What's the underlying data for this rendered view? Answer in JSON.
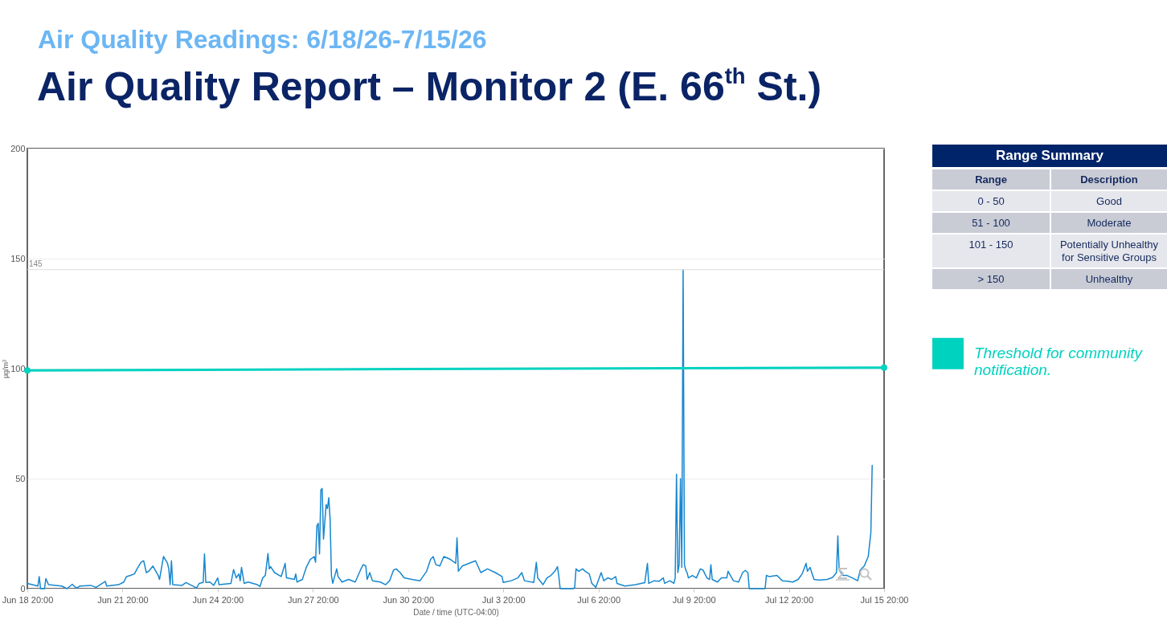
{
  "chart_data": [
    {
      "type": "line",
      "subtitle": "Air Quality Readings: 6/18/26-7/15/26",
      "title": "Air Quality Report – Monitor 2 (E. 66$^{th}$ St.)",
      "xlabel": "Date / time (UTC-04:00)",
      "ylabel": "µg/m³",
      "x": [
        "--06-18T20:00",
        "--06-19T04:00",
        "--06-19T05:00",
        "--06-19T06:00",
        "--06-19T09:00",
        "--06-19T10:00",
        "--06-19T12:00",
        "--06-19T22:00",
        "--06-20T02:00",
        "--06-20T06:00",
        "--06-20T09:00",
        "--06-20T12:00",
        "--06-20T20:00",
        "--06-21T00:00",
        "--06-21T07:00",
        "--06-21T08:00",
        "--06-21T17:00",
        "--06-21T21:00",
        "--06-21T23:00",
        "--06-22T02:00",
        "--06-22T05:00",
        "--06-22T07:00",
        "--06-22T10:00",
        "--06-22T12:00",
        "--06-22T14:00",
        "--06-22T16:00",
        "--06-22T19:00",
        "--06-22T23:00",
        "--06-23T00:00",
        "--06-23T03:00",
        "--06-23T06:00",
        "--06-23T07:00",
        "--06-23T08:00",
        "--06-23T09:00",
        "--06-23T10:00",
        "--06-23T17:00",
        "--06-23T20:00",
        "--06-24T04:00",
        "--06-24T06:00",
        "--06-24T09:00",
        "--06-24T10:00",
        "--06-24T11:00",
        "--06-24T14:00",
        "--06-24T17:00",
        "--06-24T20:00",
        "--06-24T21:00",
        "--06-25T06:00",
        "--06-25T08:00",
        "--06-25T10:00",
        "--06-25T12:00",
        "--06-25T13:00",
        "--06-25T14:00",
        "--06-25T16:00",
        "--06-25T19:00",
        "--06-26T02:00",
        "--06-26T04:00",
        "--06-26T06:00",
        "--06-26T08:00",
        "--06-26T10:00",
        "--06-26T11:00",
        "--06-26T12:00",
        "--06-26T15:00",
        "--06-26T20:00",
        "--06-26T23:00",
        "--06-27T00:00",
        "--06-27T06:00",
        "--06-27T07:00",
        "--06-27T08:00",
        "--06-27T12:00",
        "--06-27T15:00",
        "--06-27T18:00",
        "--06-27T21:00",
        "--06-27T22:00",
        "--06-27T23:00",
        "--06-28T00:00",
        "--06-28T01:00",
        "--06-28T02:00",
        "--06-28T03:00",
        "--06-28T04:00",
        "--06-28T06:00",
        "--06-28T07:00",
        "--06-28T08:00",
        "--06-28T09:00",
        "--06-28T10:00",
        "--06-28T11:00",
        "--06-28T14:00",
        "--06-28T15:00",
        "--06-28T18:00",
        "--06-28T23:00",
        "--06-29T04:00",
        "--06-29T08:00",
        "--06-29T10:00",
        "--06-29T12:00",
        "--06-29T13:00",
        "--06-29T15:00",
        "--06-29T17:00",
        "--06-29T23:00",
        "--06-30T03:00",
        "--06-30T06:00",
        "--06-30T09:00",
        "--06-30T11:00",
        "--06-30T14:00",
        "--06-30T17:00",
        "--06-30T23:00",
        "--07-01T05:00",
        "--07-01T10:00",
        "--07-01T13:00",
        "--07-01T15:00",
        "--07-01T17:00",
        "--07-01T20:00",
        "--07-01T23:00",
        "--07-02T04:00",
        "--07-02T08:00",
        "--07-02T09:00",
        "--07-02T10:00",
        "--07-02T13:00",
        "--07-02T18:00",
        "--07-02T23:00",
        "--07-03T03:00",
        "--07-03T08:00",
        "--07-03T14:00",
        "--07-03T19:00",
        "--07-03T20:00",
        "--07-04T02:00",
        "--07-04T07:00",
        "--07-04T10:00",
        "--07-04T12:00",
        "--07-04T19:00",
        "--07-04T21:00",
        "--07-04T22:00",
        "--07-05T02:00",
        "--07-05T05:00",
        "--07-05T08:00",
        "--07-05T11:00",
        "--07-05T13:00",
        "--07-05T14:00",
        "--07-05T15:00",
        "--07-06T01:00",
        "--07-06T02:00",
        "--07-06T03:00",
        "--07-06T05:00",
        "--07-06T08:00",
        "--07-06T10:00",
        "--07-06T13:00",
        "--07-06T15:00",
        "--07-06T18:00",
        "--07-06T22:00",
        "--07-07T00:00",
        "--07-07T03:00",
        "--07-07T06:00",
        "--07-07T09:00",
        "--07-07T10:00",
        "--07-07T16:00",
        "--07-08T00:00",
        "--07-08T07:00",
        "--07-08T09:00",
        "--07-08T10:00",
        "--07-08T14:00",
        "--07-08T18:00",
        "--07-08T21:00",
        "--07-08T22:00",
        "--07-09T02:00",
        "--07-09T05:00",
        "--07-09T06:00",
        "--07-09T07:00",
        "--07-09T08:00",
        "--07-09T09:00",
        "--07-09T10:00",
        "--07-09T11:00",
        "--07-09T12:00",
        "--07-09T13:00",
        "--07-09T14:00",
        "--07-09T15:00",
        "--07-09T16:00",
        "--07-09T19:00",
        "--07-09T22:00",
        "--07-10T01:00",
        "--07-10T03:00",
        "--07-10T06:00",
        "--07-10T08:00",
        "--07-10T09:00",
        "--07-10T10:00",
        "--07-10T14:00",
        "--07-10T17:00",
        "--07-10T21:00",
        "--07-10T22:00",
        "--07-11T02:00",
        "--07-11T06:00",
        "--07-11T09:00",
        "--07-11T11:00",
        "--07-11T13:00",
        "--07-11T14:00",
        "--07-12T02:00",
        "--07-12T03:00",
        "--07-12T05:00",
        "--07-12T11:00",
        "--07-12T15:00",
        "--07-12T19:00",
        "--07-12T23:00",
        "--07-13T03:00",
        "--07-13T06:00",
        "--07-13T09:00",
        "--07-13T10:00",
        "--07-13T12:00",
        "--07-13T15:00",
        "--07-13T19:00",
        "--07-14T01:00",
        "--07-14T05:00",
        "--07-14T08:00",
        "--07-14T09:00",
        "--07-14T10:00",
        "--07-14T13:00",
        "--07-14T16:00",
        "--07-14T20:00",
        "--07-15T00:00",
        "--07-15T02:00",
        "--07-15T05:00",
        "--07-15T08:00",
        "--07-15T10:00",
        "--07-15T11:00"
      ],
      "series": [
        {
          "color": "#1787cf",
          "values": [
            2.4,
            1.2,
            5.5,
            0,
            0,
            4.6,
            1.8,
            1.2,
            0,
            2,
            0.3,
            1.2,
            1.5,
            0.6,
            3.3,
            1.2,
            1.8,
            3,
            5.5,
            6,
            6.7,
            9,
            12,
            12.7,
            7.3,
            8,
            10.3,
            6,
            4.2,
            14.6,
            11.5,
            9,
            1.8,
            12.7,
            1.8,
            1.5,
            2.8,
            0.3,
            2.4,
            2.8,
            15.8,
            2.8,
            3,
            1.5,
            4.9,
            1.8,
            2.4,
            8.7,
            4.9,
            6.7,
            3.6,
            9.7,
            2.4,
            3,
            1.8,
            1,
            4.9,
            6,
            16,
            9,
            10,
            7.3,
            5.5,
            11.5,
            4.9,
            4.2,
            6.7,
            3,
            4.2,
            9.7,
            13.3,
            14.6,
            12,
            28.5,
            29.7,
            15.8,
            44.9,
            45.5,
            22.5,
            38.2,
            36.4,
            41.3,
            31.6,
            6,
            2.4,
            9,
            5.5,
            3,
            4.2,
            3,
            8.5,
            10.9,
            10.3,
            4.2,
            7.3,
            3.6,
            3,
            1.8,
            3.6,
            8.5,
            9,
            7.3,
            4.9,
            4.2,
            3.6,
            7.9,
            13.3,
            14.6,
            10.9,
            10.3,
            14.6,
            13.3,
            11.5,
            23.1,
            7.9,
            10.3,
            11.5,
            12.7,
            7.3,
            9,
            7.3,
            5.5,
            2.8,
            3.6,
            4.9,
            7.3,
            3.6,
            2.8,
            12,
            4.9,
            1.8,
            4.9,
            6,
            7.9,
            10,
            5.5,
            0,
            0,
            0.6,
            9,
            7.9,
            9,
            7.9,
            6.7,
            2.4,
            0.6,
            7.3,
            3.6,
            4.9,
            4.2,
            5.5,
            2.4,
            1.2,
            1.8,
            2.7,
            11.5,
            2.4,
            3.6,
            3.4,
            4.9,
            2.4,
            3.6,
            2.4,
            4.9,
            52,
            7.3,
            10.9,
            50,
            9.7,
            145,
            10.9,
            8.5,
            7.3,
            4.9,
            6,
            4.9,
            9,
            8.5,
            4.9,
            4.2,
            10.9,
            4.2,
            3,
            4.9,
            4.9,
            7.9,
            3.6,
            3,
            7.3,
            8.3,
            7.3,
            0,
            0,
            6,
            5.5,
            6,
            3.6,
            3.4,
            3,
            4.2,
            6.7,
            11.5,
            7.9,
            9.7,
            4.2,
            3.9,
            4.2,
            5.1,
            7.3,
            24,
            8.5,
            6,
            6,
            4.9,
            3.6,
            8.5,
            10.3,
            14.6,
            25.5,
            56
          ]
        },
        {
          "name": "Threshold for community notification.",
          "color": "#00d2c0",
          "marker": "circle",
          "x": [
            "--06-18T20:00",
            "--07-15T20:00"
          ],
          "values": [
            99.2,
            100.5
          ]
        }
      ],
      "xlim": [
        "--06-18T20:00",
        "--07-15T20:00"
      ],
      "xticks": [
        {
          "value": "--06-18T20:00",
          "label": "Jun 18 20:00"
        },
        {
          "value": "--06-21T20:00",
          "label": "Jun 21 20:00"
        },
        {
          "value": "--06-24T20:00",
          "label": "Jun 24 20:00"
        },
        {
          "value": "--06-27T20:00",
          "label": "Jun 27 20:00"
        },
        {
          "value": "--06-30T20:00",
          "label": "Jun 30 20:00"
        },
        {
          "value": "--07-03T20:00",
          "label": "Jul 3 20:00"
        },
        {
          "value": "--07-06T20:00",
          "label": "Jul 6 20:00"
        },
        {
          "value": "--07-09T20:00",
          "label": "Jul 9 20:00"
        },
        {
          "value": "--07-12T20:00",
          "label": "Jul 12 20:00"
        },
        {
          "value": "--07-15T20:00",
          "label": "Jul 15 20:00"
        }
      ],
      "ylim": [
        0,
        200
      ],
      "yticks": [
        0,
        50,
        100,
        150,
        200
      ],
      "grid": "y",
      "legend": "right",
      "ref_lines": [
        {
          "axis": "y",
          "value": 145,
          "label": "145",
          "color": "#dddddd"
        }
      ]
    },
    {
      "type": "other",
      "title": "Range Summary",
      "annotations": [
        "Range",
        "Description",
        "0 - 50",
        "Good",
        "51 - 100",
        "Moderate",
        "101 - 150",
        "Potentially Unhealthy for Sensitive Groups",
        "> 150",
        "Unhealthy"
      ]
    }
  ]
}
